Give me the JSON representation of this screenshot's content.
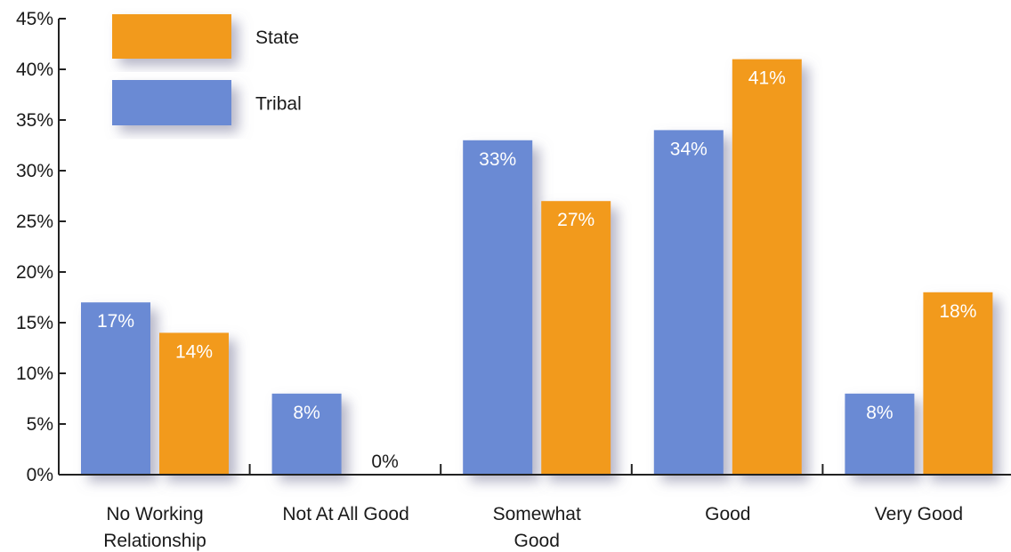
{
  "chart_data": {
    "type": "bar",
    "categories": [
      [
        "No Working",
        "Relationship"
      ],
      [
        "Not At All Good"
      ],
      [
        "Somewhat",
        "Good"
      ],
      [
        "Good"
      ],
      [
        "Very Good"
      ]
    ],
    "series": [
      {
        "name": "Tribal",
        "color": "#6a8ad4",
        "values": [
          17,
          8,
          33,
          34,
          8
        ],
        "labels": [
          "17%",
          "8%",
          "33%",
          "34%",
          "8%"
        ]
      },
      {
        "name": "State",
        "color": "#f29a1c",
        "values": [
          14,
          0,
          27,
          41,
          18
        ],
        "labels": [
          "14%",
          "0%",
          "27%",
          "41%",
          "18%"
        ]
      }
    ],
    "legend_order": [
      "State",
      "Tribal"
    ],
    "yticks": [
      "0%",
      "5%",
      "10%",
      "15%",
      "20%",
      "25%",
      "30%",
      "35%",
      "40%",
      "45%"
    ],
    "ylim": [
      0,
      45
    ],
    "legend_position": "top-left",
    "grid": false
  }
}
